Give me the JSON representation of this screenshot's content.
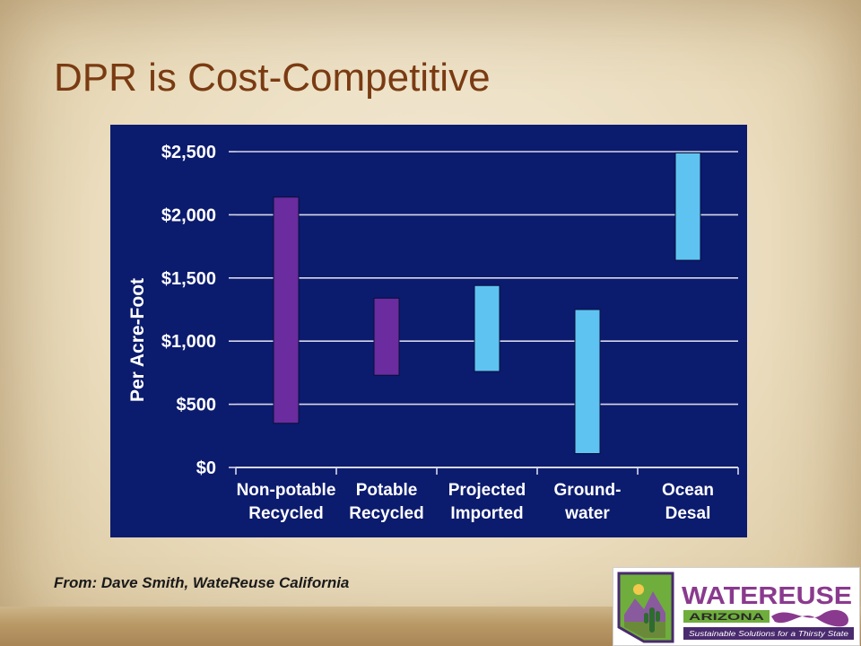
{
  "slide": {
    "title": "DPR is Cost-Competitive",
    "source": "From: Dave Smith, WateReuse California"
  },
  "logo": {
    "brand": "WATEREUSE",
    "region": "ARIZONA",
    "tagline": "Sustainable Solutions for a Thirsty State"
  },
  "chart_data": {
    "type": "bar",
    "subtype": "floating-range",
    "ylabel": "Per Acre-Foot",
    "ylim": [
      0,
      2500
    ],
    "yticks": [
      0,
      500,
      1000,
      1500,
      2000,
      2500
    ],
    "ytick_labels": [
      "$0",
      "$500",
      "$1,000",
      "$1,500",
      "$2,000",
      "$2,500"
    ],
    "grid": true,
    "categories": [
      [
        "Non-potable",
        "Recycled"
      ],
      [
        "Potable",
        "Recycled"
      ],
      [
        "Projected",
        "Imported"
      ],
      [
        "Ground-",
        "water"
      ],
      [
        "Ocean",
        "Desal"
      ]
    ],
    "ranges": [
      {
        "low": 350,
        "high": 2140,
        "color": "#6a2c9e"
      },
      {
        "low": 730,
        "high": 1340,
        "color": "#6a2c9e"
      },
      {
        "low": 760,
        "high": 1440,
        "color": "#5fc3f2"
      },
      {
        "low": 110,
        "high": 1250,
        "color": "#5fc3f2"
      },
      {
        "low": 1640,
        "high": 2490,
        "color": "#5fc3f2"
      }
    ],
    "colors": {
      "background": "#0b1b6e",
      "text": "#ffffff",
      "grid": "#d8d8e8"
    }
  }
}
